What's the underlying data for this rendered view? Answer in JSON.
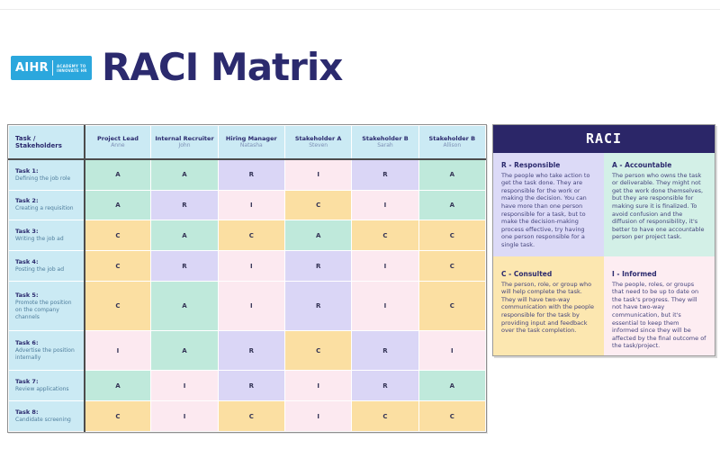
{
  "page": {
    "title": "RACI Matrix"
  },
  "logo": {
    "text": "AIHR",
    "tagline_line1": "ACADEMY TO",
    "tagline_line2": "INNOVATE HR",
    "bg": "#2ba7dd"
  },
  "matrix": {
    "corner_label": "Task / Stakeholders",
    "columns": [
      {
        "role": "Project Lead",
        "person": "Anne"
      },
      {
        "role": "Internal Recruiter",
        "person": "John"
      },
      {
        "role": "Hiring Manager",
        "person": "Natasha"
      },
      {
        "role": "Stakeholder A",
        "person": "Steven"
      },
      {
        "role": "Stakeholder B",
        "person": "Sarah"
      },
      {
        "role": "Stakeholder B",
        "person": "Allison"
      }
    ],
    "rows": [
      {
        "task": "Task 1:",
        "description": "Defining the job role",
        "cells": [
          "A",
          "A",
          "R",
          "I",
          "R",
          "A"
        ]
      },
      {
        "task": "Task 2:",
        "description": "Creating a requisition",
        "cells": [
          "A",
          "R",
          "I",
          "C",
          "I",
          "A"
        ]
      },
      {
        "task": "Task 3:",
        "description": "Writing the job ad",
        "cells": [
          "C",
          "A",
          "C",
          "A",
          "C",
          "C"
        ]
      },
      {
        "task": "Task 4:",
        "description": "Posting the job ad",
        "cells": [
          "C",
          "R",
          "I",
          "R",
          "I",
          "C"
        ]
      },
      {
        "task": "Task 5:",
        "description": "Promote the position on the company channels",
        "cells": [
          "C",
          "A",
          "I",
          "R",
          "I",
          "C"
        ]
      },
      {
        "task": "Task 6:",
        "description": "Advertise the position internally",
        "cells": [
          "I",
          "A",
          "R",
          "C",
          "R",
          "I"
        ]
      },
      {
        "task": "Task 7:",
        "description": "Review applications",
        "cells": [
          "A",
          "I",
          "R",
          "I",
          "R",
          "A"
        ]
      },
      {
        "task": "Task 8:",
        "description": "Candidate screening",
        "cells": [
          "C",
          "I",
          "C",
          "I",
          "C",
          "C"
        ]
      }
    ],
    "cell_colors": {
      "A": "#bfe9db",
      "R": "#dad6f6",
      "I": "#fce9f0",
      "C": "#fbdfa2"
    }
  },
  "legend": {
    "title": "RACI",
    "quadrants": [
      {
        "key": "R",
        "title": "R - Responsible",
        "bg": "#dcdaf7",
        "body": "The people who take action to get the task done. They are responsible for the work or making the decision. You can have more than one person responsible for a task, but to make the decision-making process effective, try having one person responsible for a single task."
      },
      {
        "key": "A",
        "title": "A - Accountable",
        "bg": "#d3f0e7",
        "body": "The person who owns the task or deliverable. They might not get the work done themselves, but they are responsible for making sure it is finalized. To avoid confusion and the diffusion of responsibility, it's better to have one accountable person per project task."
      },
      {
        "key": "C",
        "title": "C - Consulted",
        "bg": "#fce7b0",
        "body": "The person, role, or group who will help complete the task. They will have two-way communication with the people responsible for the task by providing input and feedback over the task completion."
      },
      {
        "key": "I",
        "title": "I - Informed",
        "bg": "#fdedf2",
        "body": "The people, roles, or groups that need to be up to date on the task's progress. They will not have two-way communication, but it's essential to keep them informed since they will be affected by the final outcome of the task/project."
      }
    ]
  },
  "colors": {
    "title_navy": "#2b2a6e",
    "legend_navy": "#2b2668",
    "header_bg": "#cbeaf4",
    "logo_blue": "#2ba7dd"
  }
}
